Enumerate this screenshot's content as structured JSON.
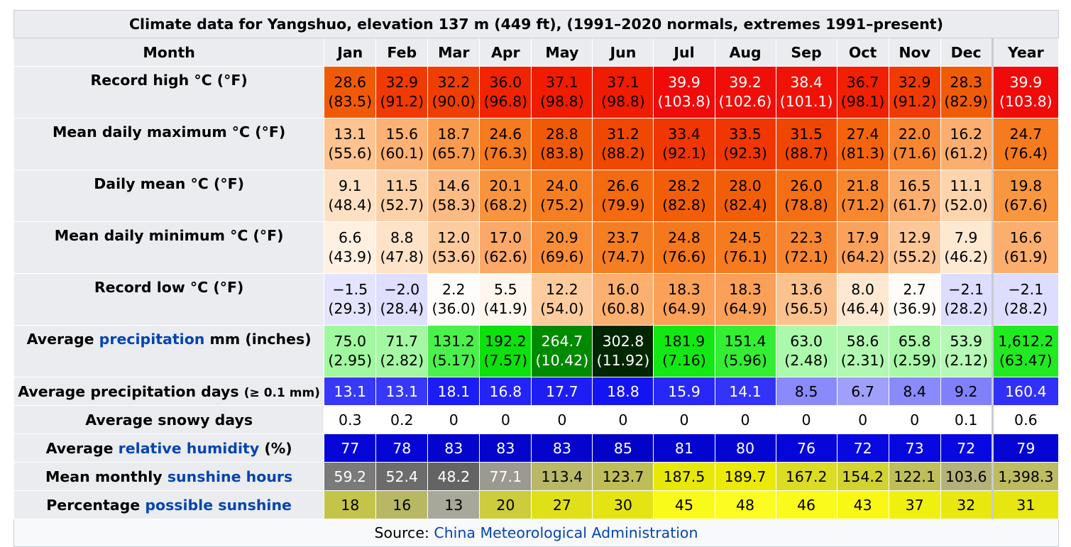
{
  "caption": "Climate data for Yangshuo, elevation 137 m (449 ft), (1991–2020 normals, extremes 1991–present)",
  "header": {
    "label": "Month",
    "months": [
      "Jan",
      "Feb",
      "Mar",
      "Apr",
      "May",
      "Jun",
      "Jul",
      "Aug",
      "Sep",
      "Oct",
      "Nov",
      "Dec"
    ],
    "year": "Year"
  },
  "rows": [
    {
      "label": "Record high °C (°F)",
      "cells": [
        {
          "v": "28.6",
          "s": "(83.5)",
          "bg": "#f05a06",
          "fg": "#000000"
        },
        {
          "v": "32.9",
          "s": "(91.2)",
          "bg": "#f03a02",
          "fg": "#000000"
        },
        {
          "v": "32.2",
          "s": "(90.0)",
          "bg": "#f03e02",
          "fg": "#000000"
        },
        {
          "v": "36.0",
          "s": "(96.8)",
          "bg": "#f02402",
          "fg": "#000000"
        },
        {
          "v": "37.1",
          "s": "(98.8)",
          "bg": "#f01c02",
          "fg": "#000000"
        },
        {
          "v": "37.1",
          "s": "(98.8)",
          "bg": "#f01c02",
          "fg": "#000000"
        },
        {
          "v": "39.9",
          "s": "(103.8)",
          "bg": "#f00a0a",
          "fg": "#ffffff"
        },
        {
          "v": "39.2",
          "s": "(102.6)",
          "bg": "#f00e0a",
          "fg": "#ffffff"
        },
        {
          "v": "38.4",
          "s": "(101.1)",
          "bg": "#f01206",
          "fg": "#ffffff"
        },
        {
          "v": "36.7",
          "s": "(98.1)",
          "bg": "#f02002",
          "fg": "#000000"
        },
        {
          "v": "32.9",
          "s": "(91.2)",
          "bg": "#f03a02",
          "fg": "#000000"
        },
        {
          "v": "28.3",
          "s": "(82.9)",
          "bg": "#f05c06",
          "fg": "#000000"
        }
      ],
      "year": {
        "v": "39.9",
        "s": "(103.8)",
        "bg": "#f00a0a",
        "fg": "#ffffff"
      }
    },
    {
      "label": "Mean daily maximum °C (°F)",
      "cells": [
        {
          "v": "13.1",
          "s": "(55.6)",
          "bg": "#fdc390",
          "fg": "#000000"
        },
        {
          "v": "15.6",
          "s": "(60.1)",
          "bg": "#fbb274",
          "fg": "#000000"
        },
        {
          "v": "18.7",
          "s": "(65.7)",
          "bg": "#fa9a4c",
          "fg": "#000000"
        },
        {
          "v": "24.6",
          "s": "(76.3)",
          "bg": "#f67a1e",
          "fg": "#000000"
        },
        {
          "v": "28.8",
          "s": "(83.8)",
          "bg": "#f05a06",
          "fg": "#000000"
        },
        {
          "v": "31.2",
          "s": "(88.2)",
          "bg": "#f04802",
          "fg": "#000000"
        },
        {
          "v": "33.4",
          "s": "(92.1)",
          "bg": "#f03602",
          "fg": "#000000"
        },
        {
          "v": "33.5",
          "s": "(92.3)",
          "bg": "#f03602",
          "fg": "#000000"
        },
        {
          "v": "31.5",
          "s": "(88.7)",
          "bg": "#f04602",
          "fg": "#000000"
        },
        {
          "v": "27.4",
          "s": "(81.3)",
          "bg": "#f4640c",
          "fg": "#000000"
        },
        {
          "v": "22.0",
          "s": "(71.6)",
          "bg": "#f88630",
          "fg": "#000000"
        },
        {
          "v": "16.2",
          "s": "(61.2)",
          "bg": "#fbae6e",
          "fg": "#000000"
        }
      ],
      "year": {
        "v": "24.7",
        "s": "(76.4)",
        "bg": "#f67a1e",
        "fg": "#000000"
      }
    },
    {
      "label": "Daily mean °C (°F)",
      "cells": [
        {
          "v": "9.1",
          "s": "(48.4)",
          "bg": "#fee1c4",
          "fg": "#000000"
        },
        {
          "v": "11.5",
          "s": "(52.7)",
          "bg": "#fdd1a8",
          "fg": "#000000"
        },
        {
          "v": "14.6",
          "s": "(58.3)",
          "bg": "#fcbb84",
          "fg": "#000000"
        },
        {
          "v": "20.1",
          "s": "(68.2)",
          "bg": "#f9943e",
          "fg": "#000000"
        },
        {
          "v": "24.0",
          "s": "(75.2)",
          "bg": "#f67e22",
          "fg": "#000000"
        },
        {
          "v": "26.6",
          "s": "(79.9)",
          "bg": "#f46a10",
          "fg": "#000000"
        },
        {
          "v": "28.2",
          "s": "(82.8)",
          "bg": "#f25e08",
          "fg": "#000000"
        },
        {
          "v": "28.0",
          "s": "(82.4)",
          "bg": "#f25e08",
          "fg": "#000000"
        },
        {
          "v": "26.0",
          "s": "(78.8)",
          "bg": "#f46e14",
          "fg": "#000000"
        },
        {
          "v": "21.8",
          "s": "(71.2)",
          "bg": "#f88830",
          "fg": "#000000"
        },
        {
          "v": "16.5",
          "s": "(61.7)",
          "bg": "#fbae6e",
          "fg": "#000000"
        },
        {
          "v": "11.1",
          "s": "(52.0)",
          "bg": "#fdd4ac",
          "fg": "#000000"
        }
      ],
      "year": {
        "v": "19.8",
        "s": "(67.6)",
        "bg": "#f99640",
        "fg": "#000000"
      }
    },
    {
      "label": "Mean daily minimum °C (°F)",
      "cells": [
        {
          "v": "6.6",
          "s": "(43.9)",
          "bg": "#fff0e2",
          "fg": "#000000"
        },
        {
          "v": "8.8",
          "s": "(47.8)",
          "bg": "#fee3c8",
          "fg": "#000000"
        },
        {
          "v": "12.0",
          "s": "(53.6)",
          "bg": "#fdcc9e",
          "fg": "#000000"
        },
        {
          "v": "17.0",
          "s": "(62.6)",
          "bg": "#fba868",
          "fg": "#000000"
        },
        {
          "v": "20.9",
          "s": "(69.6)",
          "bg": "#f98e38",
          "fg": "#000000"
        },
        {
          "v": "23.7",
          "s": "(74.7)",
          "bg": "#f67e22",
          "fg": "#000000"
        },
        {
          "v": "24.8",
          "s": "(76.6)",
          "bg": "#f6781c",
          "fg": "#000000"
        },
        {
          "v": "24.5",
          "s": "(76.1)",
          "bg": "#f67a1e",
          "fg": "#000000"
        },
        {
          "v": "22.3",
          "s": "(72.1)",
          "bg": "#f88630",
          "fg": "#000000"
        },
        {
          "v": "17.9",
          "s": "(64.2)",
          "bg": "#faa25c",
          "fg": "#000000"
        },
        {
          "v": "12.9",
          "s": "(55.2)",
          "bg": "#fdc696",
          "fg": "#000000"
        },
        {
          "v": "7.9",
          "s": "(46.2)",
          "bg": "#fee8d2",
          "fg": "#000000"
        }
      ],
      "year": {
        "v": "16.6",
        "s": "(61.9)",
        "bg": "#fbae6e",
        "fg": "#000000"
      }
    },
    {
      "label": "Record low °C (°F)",
      "cells": [
        {
          "v": "−1.5",
          "s": "(29.3)",
          "bg": "#e4e4ff",
          "fg": "#000000"
        },
        {
          "v": "−2.0",
          "s": "(28.4)",
          "bg": "#dedeff",
          "fg": "#000000"
        },
        {
          "v": "2.2",
          "s": "(36.0)",
          "bg": "#fffdfb",
          "fg": "#000000"
        },
        {
          "v": "5.5",
          "s": "(41.9)",
          "bg": "#fff6ee",
          "fg": "#000000"
        },
        {
          "v": "12.2",
          "s": "(54.0)",
          "bg": "#fdcc9e",
          "fg": "#000000"
        },
        {
          "v": "16.0",
          "s": "(60.8)",
          "bg": "#fbb070",
          "fg": "#000000"
        },
        {
          "v": "18.3",
          "s": "(64.9)",
          "bg": "#faa058",
          "fg": "#000000"
        },
        {
          "v": "18.3",
          "s": "(64.9)",
          "bg": "#faa058",
          "fg": "#000000"
        },
        {
          "v": "13.6",
          "s": "(56.5)",
          "bg": "#fcc28e",
          "fg": "#000000"
        },
        {
          "v": "8.0",
          "s": "(46.4)",
          "bg": "#fee8d2",
          "fg": "#000000"
        },
        {
          "v": "2.7",
          "s": "(36.9)",
          "bg": "#fffcf8",
          "fg": "#000000"
        },
        {
          "v": "−2.1",
          "s": "(28.2)",
          "bg": "#ddddff",
          "fg": "#000000"
        }
      ],
      "year": {
        "v": "−2.1",
        "s": "(28.2)",
        "bg": "#ddddff",
        "fg": "#000000"
      }
    },
    {
      "label_pre": "Average ",
      "label_link": "precipitation",
      "label_post": " mm (inches)",
      "cells": [
        {
          "v": "75.0",
          "s": "(2.95)",
          "bg": "#a0f8a0",
          "fg": "#000000"
        },
        {
          "v": "71.7",
          "s": "(2.82)",
          "bg": "#a4f8a4",
          "fg": "#000000"
        },
        {
          "v": "131.2",
          "s": "(5.17)",
          "bg": "#4cf04c",
          "fg": "#000000"
        },
        {
          "v": "192.2",
          "s": "(7.57)",
          "bg": "#0ee00e",
          "fg": "#000000"
        },
        {
          "v": "264.7",
          "s": "(10.42)",
          "bg": "#008a00",
          "fg": "#ffffff"
        },
        {
          "v": "302.8",
          "s": "(11.92)",
          "bg": "#002600",
          "fg": "#ffffff"
        },
        {
          "v": "181.9",
          "s": "(7.16)",
          "bg": "#14e814",
          "fg": "#000000"
        },
        {
          "v": "151.4",
          "s": "(5.96)",
          "bg": "#34ee34",
          "fg": "#000000"
        },
        {
          "v": "63.0",
          "s": "(2.48)",
          "bg": "#acf8ac",
          "fg": "#000000"
        },
        {
          "v": "58.6",
          "s": "(2.31)",
          "bg": "#b2f8b2",
          "fg": "#000000"
        },
        {
          "v": "65.8",
          "s": "(2.59)",
          "bg": "#a8f8a8",
          "fg": "#000000"
        },
        {
          "v": "53.9",
          "s": "(2.12)",
          "bg": "#b6f8b6",
          "fg": "#000000"
        }
      ],
      "year": {
        "v": "1,612.2",
        "s": "(63.47)",
        "bg": "#22ea22",
        "fg": "#000000"
      }
    },
    {
      "label_pre": "Average precipitation days ",
      "label_small": "(≥ 0.1 mm)",
      "cells": [
        {
          "v": "13.1",
          "bg": "#3838f8",
          "fg": "#ffffff"
        },
        {
          "v": "13.1",
          "bg": "#3838f8",
          "fg": "#ffffff"
        },
        {
          "v": "18.1",
          "bg": "#1c1cf4",
          "fg": "#ffffff"
        },
        {
          "v": "16.8",
          "bg": "#2424f6",
          "fg": "#ffffff"
        },
        {
          "v": "17.7",
          "bg": "#1e1ef4",
          "fg": "#ffffff"
        },
        {
          "v": "18.8",
          "bg": "#1414f2",
          "fg": "#ffffff"
        },
        {
          "v": "15.9",
          "bg": "#2828f6",
          "fg": "#ffffff"
        },
        {
          "v": "14.1",
          "bg": "#3434f8",
          "fg": "#ffffff"
        },
        {
          "v": "8.5",
          "bg": "#8a8afa",
          "fg": "#000000"
        },
        {
          "v": "6.7",
          "bg": "#a0a0fc",
          "fg": "#000000"
        },
        {
          "v": "8.4",
          "bg": "#8a8afa",
          "fg": "#000000"
        },
        {
          "v": "9.2",
          "bg": "#8080fa",
          "fg": "#000000"
        }
      ],
      "year": {
        "v": "160.4",
        "bg": "#3030f8",
        "fg": "#ffffff"
      }
    },
    {
      "label_pre": "Average snowy days",
      "cells": [
        {
          "v": "0.3",
          "bg": "#ffffff",
          "fg": "#000000"
        },
        {
          "v": "0.2",
          "bg": "#ffffff",
          "fg": "#000000"
        },
        {
          "v": "0",
          "bg": "#ffffff",
          "fg": "#000000"
        },
        {
          "v": "0",
          "bg": "#ffffff",
          "fg": "#000000"
        },
        {
          "v": "0",
          "bg": "#ffffff",
          "fg": "#000000"
        },
        {
          "v": "0",
          "bg": "#ffffff",
          "fg": "#000000"
        },
        {
          "v": "0",
          "bg": "#ffffff",
          "fg": "#000000"
        },
        {
          "v": "0",
          "bg": "#ffffff",
          "fg": "#000000"
        },
        {
          "v": "0",
          "bg": "#ffffff",
          "fg": "#000000"
        },
        {
          "v": "0",
          "bg": "#ffffff",
          "fg": "#000000"
        },
        {
          "v": "0",
          "bg": "#ffffff",
          "fg": "#000000"
        },
        {
          "v": "0.1",
          "bg": "#ffffff",
          "fg": "#000000"
        }
      ],
      "year": {
        "v": "0.6",
        "bg": "#ffffff",
        "fg": "#000000"
      }
    },
    {
      "label_pre": "Average ",
      "label_link": "relative humidity",
      "label_post": " (%)",
      "cells": [
        {
          "v": "77",
          "bg": "#0606d8",
          "fg": "#ffffff"
        },
        {
          "v": "78",
          "bg": "#0505d6",
          "fg": "#ffffff"
        },
        {
          "v": "83",
          "bg": "#0404cc",
          "fg": "#ffffff"
        },
        {
          "v": "83",
          "bg": "#0404cc",
          "fg": "#ffffff"
        },
        {
          "v": "83",
          "bg": "#0404cc",
          "fg": "#ffffff"
        },
        {
          "v": "85",
          "bg": "#0303c8",
          "fg": "#ffffff"
        },
        {
          "v": "81",
          "bg": "#0404d0",
          "fg": "#ffffff"
        },
        {
          "v": "80",
          "bg": "#0505d2",
          "fg": "#ffffff"
        },
        {
          "v": "76",
          "bg": "#0606da",
          "fg": "#ffffff"
        },
        {
          "v": "72",
          "bg": "#0808e2",
          "fg": "#ffffff"
        },
        {
          "v": "73",
          "bg": "#0707e0",
          "fg": "#ffffff"
        },
        {
          "v": "72",
          "bg": "#0808e2",
          "fg": "#ffffff"
        }
      ],
      "year": {
        "v": "79",
        "bg": "#0505d4",
        "fg": "#ffffff"
      }
    },
    {
      "label_pre": "Mean monthly ",
      "label_link": "sunshine hours",
      "cells": [
        {
          "v": "59.2",
          "bg": "#7a7a7a",
          "fg": "#ffffff"
        },
        {
          "v": "52.4",
          "bg": "#6c6c6c",
          "fg": "#ffffff"
        },
        {
          "v": "48.2",
          "bg": "#646464",
          "fg": "#ffffff"
        },
        {
          "v": "77.1",
          "bg": "#9a9a90",
          "fg": "#ffffff"
        },
        {
          "v": "113.4",
          "bg": "#b8b868",
          "fg": "#000000"
        },
        {
          "v": "123.7",
          "bg": "#bebe58",
          "fg": "#000000"
        },
        {
          "v": "187.5",
          "bg": "#e8e808",
          "fg": "#000000"
        },
        {
          "v": "189.7",
          "bg": "#eaea06",
          "fg": "#000000"
        },
        {
          "v": "167.2",
          "bg": "#dcdc22",
          "fg": "#000000"
        },
        {
          "v": "154.2",
          "bg": "#d2d230",
          "fg": "#000000"
        },
        {
          "v": "122.1",
          "bg": "#bebe5a",
          "fg": "#000000"
        },
        {
          "v": "103.6",
          "bg": "#b2b27a",
          "fg": "#000000"
        }
      ],
      "year": {
        "v": "1,398.3",
        "bg": "#bcbc62",
        "fg": "#000000"
      }
    },
    {
      "label_pre": "Percentage ",
      "label_link": "possible sunshine",
      "cells": [
        {
          "v": "18",
          "bg": "#c4c44a",
          "fg": "#000000"
        },
        {
          "v": "16",
          "bg": "#b8b864",
          "fg": "#000000"
        },
        {
          "v": "13",
          "bg": "#a8a89a",
          "fg": "#000000"
        },
        {
          "v": "20",
          "bg": "#cccc3c",
          "fg": "#000000"
        },
        {
          "v": "27",
          "bg": "#e0e018",
          "fg": "#000000"
        },
        {
          "v": "30",
          "bg": "#e4e412",
          "fg": "#000000"
        },
        {
          "v": "45",
          "bg": "#fafa1a",
          "fg": "#000000"
        },
        {
          "v": "48",
          "bg": "#fcfc22",
          "fg": "#000000"
        },
        {
          "v": "46",
          "bg": "#fafa1c",
          "fg": "#000000"
        },
        {
          "v": "43",
          "bg": "#f8f814",
          "fg": "#000000"
        },
        {
          "v": "37",
          "bg": "#f0f00e",
          "fg": "#000000"
        },
        {
          "v": "32",
          "bg": "#e8e80e",
          "fg": "#000000"
        }
      ],
      "year": {
        "v": "31",
        "bg": "#e6e610",
        "fg": "#000000"
      }
    }
  ],
  "source": {
    "pre": "Source: ",
    "link": "China Meteorological Administration"
  }
}
